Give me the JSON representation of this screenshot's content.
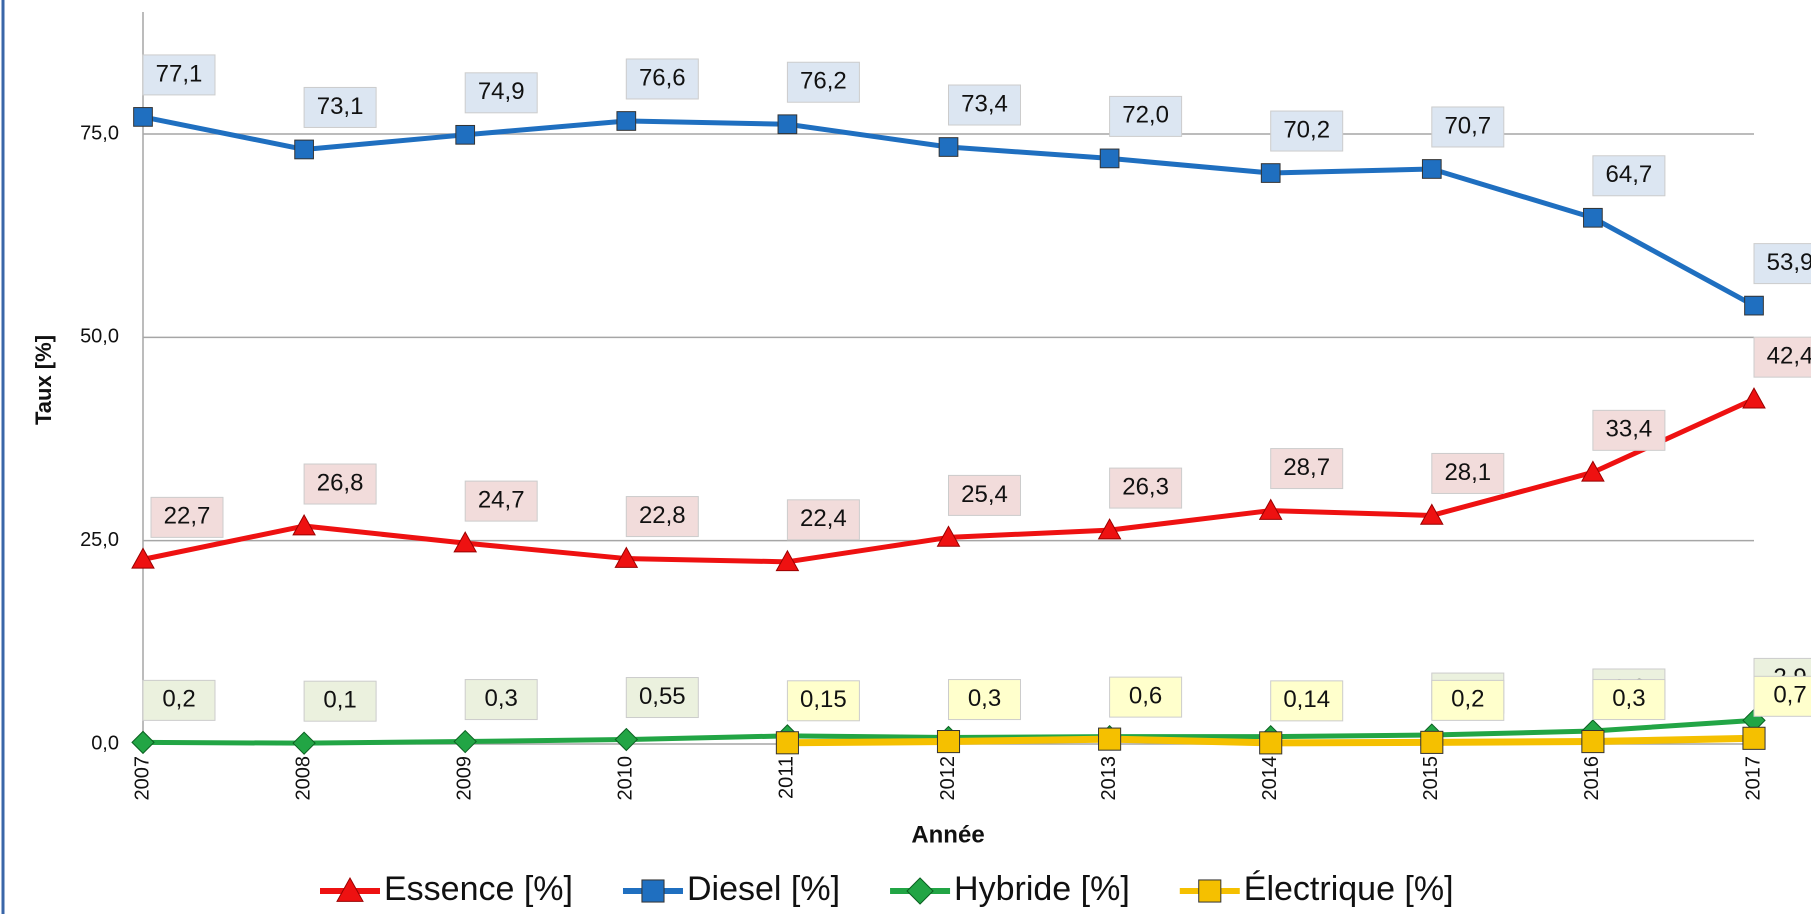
{
  "chart_data": {
    "type": "line",
    "x_label": "Année",
    "y_label": "Taux [%]",
    "categories": [
      "2007",
      "2008",
      "2009",
      "2010",
      "2011",
      "2012",
      "2013",
      "2014",
      "2015",
      "2016",
      "2017"
    ],
    "ylim": [
      0,
      90
    ],
    "yticks": [
      {
        "value": 0,
        "label": "0,0"
      },
      {
        "value": 25,
        "label": "25,0"
      },
      {
        "value": 50,
        "label": "50,0"
      },
      {
        "value": 75,
        "label": "75,0"
      }
    ],
    "grid": true,
    "legend": "bottom",
    "series": [
      {
        "name": "Essence [%]",
        "color": "#ee1111",
        "marker": "triangle",
        "label_fill": "#f2dcdb",
        "values": [
          22.7,
          26.8,
          24.7,
          22.8,
          22.4,
          25.4,
          26.3,
          28.7,
          28.1,
          33.4,
          42.4
        ],
        "value_labels": [
          "22,7",
          "26,8",
          "24,7",
          "22,8",
          "22,4",
          "25,4",
          "26,3",
          "28,7",
          "28,1",
          "33,4",
          "42,4"
        ]
      },
      {
        "name": "Diesel [%]",
        "color": "#1f6fc0",
        "marker": "square",
        "label_fill": "#dce6f2",
        "values": [
          77.1,
          73.1,
          74.9,
          76.6,
          76.2,
          73.4,
          72.0,
          70.2,
          70.7,
          64.7,
          53.9
        ],
        "value_labels": [
          "77,1",
          "73,1",
          "74,9",
          "76,6",
          "76,2",
          "73,4",
          "72,0",
          "70,2",
          "70,7",
          "64,7",
          "53,9"
        ]
      },
      {
        "name": "Hybride [%]",
        "color": "#22a545",
        "marker": "diamond",
        "label_fill": "#ebf1de",
        "values": [
          0.2,
          0.1,
          0.3,
          0.55,
          1.0,
          0.8,
          0.9,
          0.9,
          1.1,
          1.6,
          2.9
        ],
        "value_labels": [
          "0,2",
          "0,1",
          "0,3",
          "0,55",
          null,
          null,
          null,
          null,
          "1,1",
          "1,6",
          "2,9"
        ]
      },
      {
        "name": "Électrique [%]",
        "color": "#f5c000",
        "marker": "square",
        "label_fill": "#ffffcc",
        "values": [
          null,
          null,
          null,
          null,
          0.15,
          0.3,
          0.6,
          0.14,
          0.2,
          0.3,
          0.7
        ],
        "value_labels": [
          null,
          null,
          null,
          null,
          "0,15",
          "0,3",
          "0,6",
          "0,14",
          "0,2",
          "0,3",
          "0,7"
        ]
      }
    ]
  }
}
